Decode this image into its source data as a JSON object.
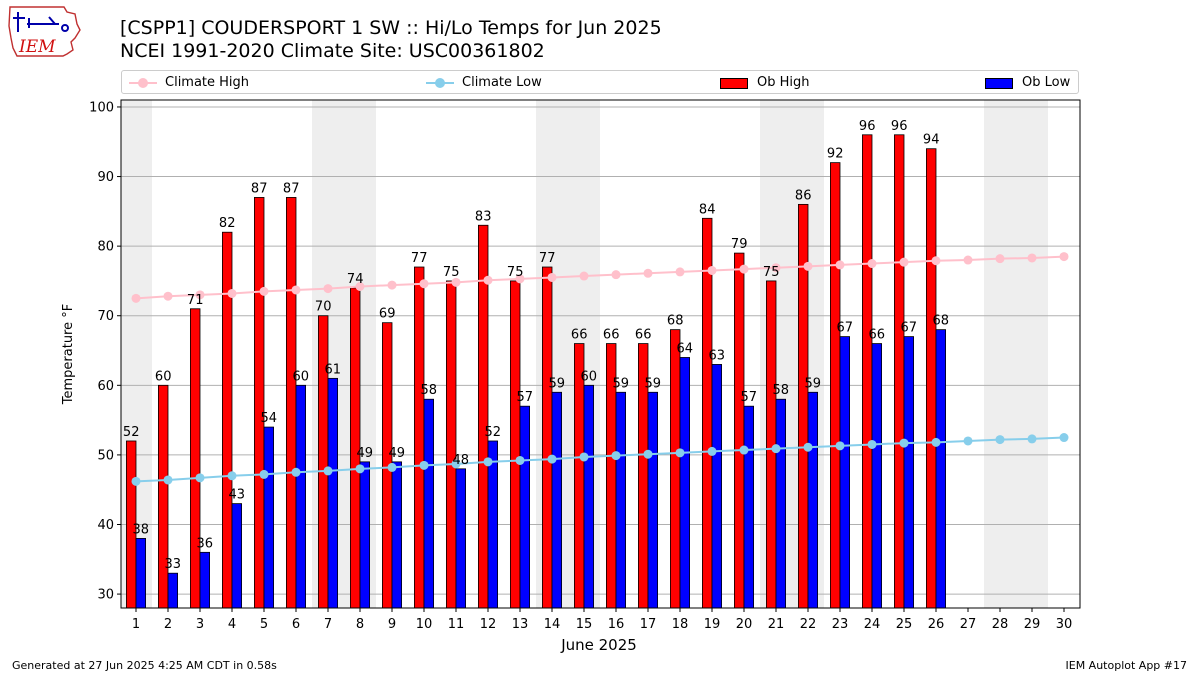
{
  "header": {
    "title_line1": "[CSPP1] COUDERSPORT 1 SW :: Hi/Lo Temps for Jun 2025",
    "title_line2": "NCEI 1991-2020 Climate Site: USC00361802"
  },
  "logo": {
    "text": "IEM"
  },
  "footer": {
    "left": "Generated at 27 Jun 2025 4:25 AM CDT in 0.58s",
    "right": "IEM Autoplot App #17"
  },
  "legend": {
    "climate_high": "Climate High",
    "climate_low": "Climate Low",
    "ob_high": "Ob High",
    "ob_low": "Ob Low"
  },
  "chart_data": {
    "type": "bar",
    "xlabel": "June 2025",
    "ylabel": "Temperature °F",
    "ylim": [
      28,
      101
    ],
    "yticks": [
      30,
      40,
      50,
      60,
      70,
      80,
      90,
      100
    ],
    "grid": true,
    "legend_position": "top",
    "weekend_shading_color": "#eeeeee",
    "weekend_shaded_days": [
      [
        1
      ],
      [
        7,
        8
      ],
      [
        14,
        15
      ],
      [
        21,
        22
      ],
      [
        28,
        29
      ]
    ],
    "categories": [
      "1",
      "2",
      "3",
      "4",
      "5",
      "6",
      "7",
      "8",
      "9",
      "10",
      "11",
      "12",
      "13",
      "14",
      "15",
      "16",
      "17",
      "18",
      "19",
      "20",
      "21",
      "22",
      "23",
      "24",
      "25",
      "26",
      "27",
      "28",
      "29",
      "30"
    ],
    "bar_series": [
      {
        "name": "Ob High",
        "color": "#ff0000",
        "values": [
          52,
          60,
          71,
          82,
          87,
          87,
          70,
          74,
          69,
          77,
          75,
          83,
          75,
          77,
          66,
          66,
          66,
          68,
          84,
          79,
          75,
          86,
          92,
          96,
          96,
          94
        ]
      },
      {
        "name": "Ob Low",
        "color": "#0000ff",
        "values": [
          38,
          33,
          36,
          43,
          54,
          60,
          61,
          49,
          49,
          58,
          48,
          52,
          57,
          59,
          60,
          59,
          59,
          64,
          63,
          57,
          58,
          59,
          67,
          66,
          67,
          68
        ]
      }
    ],
    "line_series": [
      {
        "name": "Climate High",
        "color": "#ffc0cb",
        "values": [
          72.5,
          72.8,
          73.0,
          73.2,
          73.5,
          73.7,
          73.9,
          74.2,
          74.4,
          74.6,
          74.8,
          75.1,
          75.3,
          75.5,
          75.7,
          75.9,
          76.1,
          76.3,
          76.5,
          76.7,
          76.9,
          77.1,
          77.3,
          77.5,
          77.7,
          77.9,
          78.0,
          78.2,
          78.3,
          78.5
        ]
      },
      {
        "name": "Climate Low",
        "color": "#87ceeb",
        "values": [
          46.2,
          46.4,
          46.7,
          47.0,
          47.2,
          47.5,
          47.7,
          48.0,
          48.2,
          48.5,
          48.7,
          49.0,
          49.2,
          49.4,
          49.7,
          49.9,
          50.1,
          50.3,
          50.5,
          50.7,
          50.9,
          51.1,
          51.3,
          51.5,
          51.7,
          51.8,
          52.0,
          52.2,
          52.3,
          52.5
        ]
      }
    ]
  }
}
